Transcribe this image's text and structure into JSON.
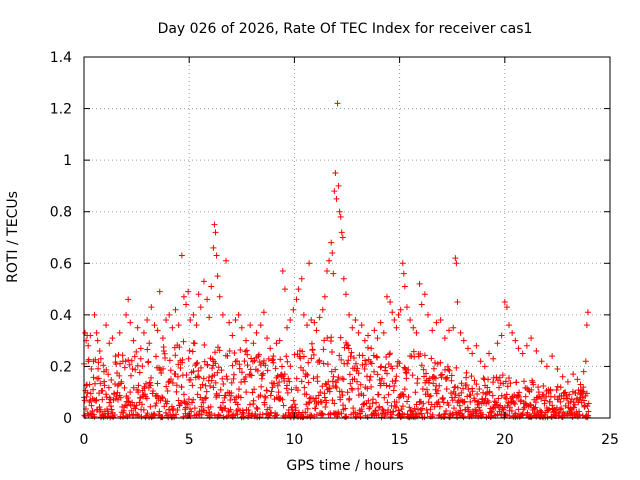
{
  "chart_data": {
    "type": "scatter",
    "title": "Day 026 of 2026, Rate Of TEC Index for receiver cas1",
    "xlabel": "GPS time / hours",
    "ylabel": "ROTI / TECUs",
    "xlim": [
      0,
      25
    ],
    "ylim": [
      0,
      1.4
    ],
    "x_ticks": [
      "0",
      "5",
      "10",
      "15",
      "20",
      "25"
    ],
    "y_ticks": [
      "0",
      "0.2",
      "0.4",
      "0.6",
      "0.8",
      "1",
      "1.2",
      "1.4"
    ],
    "grid": true,
    "marker": "plus",
    "series": [
      {
        "color": "#ff0000",
        "points": [
          [
            0.0,
            0.21
          ],
          [
            0.05,
            0.33
          ],
          [
            0.1,
            0.3
          ],
          [
            0.15,
            0.32
          ],
          [
            0.2,
            0.28
          ],
          [
            0.3,
            0.32
          ],
          [
            0.35,
            0.19
          ],
          [
            0.45,
            0.22
          ],
          [
            0.5,
            0.4
          ],
          [
            0.6,
            0.33
          ],
          [
            0.65,
            0.3
          ],
          [
            0.75,
            0.26
          ],
          [
            0.8,
            0.23
          ],
          [
            0.95,
            0.18
          ],
          [
            1.05,
            0.36
          ],
          [
            1.2,
            0.29
          ],
          [
            1.35,
            0.31
          ],
          [
            1.5,
            0.24
          ],
          [
            1.7,
            0.33
          ],
          [
            1.85,
            0.22
          ],
          [
            2.0,
            0.4
          ],
          [
            2.1,
            0.46
          ],
          [
            2.2,
            0.37
          ],
          [
            2.35,
            0.3
          ],
          [
            2.55,
            0.35
          ],
          [
            2.7,
            0.27
          ],
          [
            2.85,
            0.33
          ],
          [
            3.0,
            0.38
          ],
          [
            3.1,
            0.29
          ],
          [
            3.2,
            0.43
          ],
          [
            3.35,
            0.36
          ],
          [
            3.5,
            0.34
          ],
          [
            3.6,
            0.49
          ],
          [
            3.75,
            0.31
          ],
          [
            3.9,
            0.38
          ],
          [
            4.05,
            0.4
          ],
          [
            4.2,
            0.35
          ],
          [
            4.35,
            0.42
          ],
          [
            4.5,
            0.36
          ],
          [
            4.65,
            0.63
          ],
          [
            4.75,
            0.47
          ],
          [
            4.85,
            0.44
          ],
          [
            4.95,
            0.49
          ],
          [
            5.05,
            0.38
          ],
          [
            5.2,
            0.4
          ],
          [
            5.35,
            0.36
          ],
          [
            5.45,
            0.48
          ],
          [
            5.55,
            0.43
          ],
          [
            5.7,
            0.53
          ],
          [
            5.85,
            0.46
          ],
          [
            5.95,
            0.39
          ],
          [
            6.05,
            0.51
          ],
          [
            6.15,
            0.66
          ],
          [
            6.2,
            0.75
          ],
          [
            6.25,
            0.72
          ],
          [
            6.3,
            0.63
          ],
          [
            6.35,
            0.55
          ],
          [
            6.45,
            0.47
          ],
          [
            6.6,
            0.4
          ],
          [
            6.75,
            0.61
          ],
          [
            6.9,
            0.37
          ],
          [
            7.05,
            0.32
          ],
          [
            7.2,
            0.38
          ],
          [
            7.35,
            0.4
          ],
          [
            7.5,
            0.35
          ],
          [
            7.7,
            0.3
          ],
          [
            7.9,
            0.36
          ],
          [
            8.05,
            0.29
          ],
          [
            8.2,
            0.33
          ],
          [
            8.4,
            0.36
          ],
          [
            8.55,
            0.41
          ],
          [
            8.7,
            0.31
          ],
          [
            8.85,
            0.27
          ],
          [
            9.0,
            0.24
          ],
          [
            9.15,
            0.29
          ],
          [
            9.3,
            0.3
          ],
          [
            9.45,
            0.57
          ],
          [
            9.55,
            0.5
          ],
          [
            9.65,
            0.35
          ],
          [
            9.8,
            0.38
          ],
          [
            9.95,
            0.42
          ],
          [
            10.1,
            0.46
          ],
          [
            10.2,
            0.5
          ],
          [
            10.35,
            0.54
          ],
          [
            10.45,
            0.4
          ],
          [
            10.6,
            0.36
          ],
          [
            10.7,
            0.6
          ],
          [
            10.8,
            0.38
          ],
          [
            10.95,
            0.37
          ],
          [
            11.05,
            0.34
          ],
          [
            11.2,
            0.39
          ],
          [
            11.35,
            0.42
          ],
          [
            11.45,
            0.47
          ],
          [
            11.55,
            0.57
          ],
          [
            11.65,
            0.61
          ],
          [
            11.75,
            0.68
          ],
          [
            11.8,
            0.64
          ],
          [
            11.85,
            0.56
          ],
          [
            11.9,
            0.88
          ],
          [
            11.95,
            0.95
          ],
          [
            12.0,
            0.85
          ],
          [
            12.05,
            1.22
          ],
          [
            12.1,
            0.9
          ],
          [
            12.15,
            0.8
          ],
          [
            12.2,
            0.78
          ],
          [
            12.25,
            0.72
          ],
          [
            12.3,
            0.7
          ],
          [
            12.35,
            0.54
          ],
          [
            12.45,
            0.48
          ],
          [
            12.6,
            0.4
          ],
          [
            12.75,
            0.35
          ],
          [
            12.9,
            0.38
          ],
          [
            13.05,
            0.33
          ],
          [
            13.2,
            0.36
          ],
          [
            13.35,
            0.3
          ],
          [
            13.5,
            0.32
          ],
          [
            13.65,
            0.27
          ],
          [
            13.8,
            0.34
          ],
          [
            13.95,
            0.31
          ],
          [
            14.1,
            0.37
          ],
          [
            14.25,
            0.33
          ],
          [
            14.4,
            0.47
          ],
          [
            14.55,
            0.45
          ],
          [
            14.65,
            0.41
          ],
          [
            14.75,
            0.38
          ],
          [
            14.85,
            0.35
          ],
          [
            14.95,
            0.4
          ],
          [
            15.05,
            0.42
          ],
          [
            15.15,
            0.6
          ],
          [
            15.2,
            0.56
          ],
          [
            15.25,
            0.51
          ],
          [
            15.35,
            0.43
          ],
          [
            15.5,
            0.38
          ],
          [
            15.65,
            0.35
          ],
          [
            15.8,
            0.33
          ],
          [
            15.95,
            0.52
          ],
          [
            16.05,
            0.44
          ],
          [
            16.2,
            0.48
          ],
          [
            16.35,
            0.4
          ],
          [
            16.55,
            0.34
          ],
          [
            16.75,
            0.37
          ],
          [
            16.95,
            0.38
          ],
          [
            17.15,
            0.31
          ],
          [
            17.35,
            0.34
          ],
          [
            17.55,
            0.35
          ],
          [
            17.65,
            0.62
          ],
          [
            17.7,
            0.6
          ],
          [
            17.75,
            0.45
          ],
          [
            17.9,
            0.33
          ],
          [
            18.05,
            0.3
          ],
          [
            18.25,
            0.27
          ],
          [
            18.45,
            0.25
          ],
          [
            18.65,
            0.28
          ],
          [
            18.85,
            0.22
          ],
          [
            19.05,
            0.2
          ],
          [
            19.25,
            0.25
          ],
          [
            19.45,
            0.23
          ],
          [
            19.65,
            0.29
          ],
          [
            19.85,
            0.32
          ],
          [
            20.0,
            0.45
          ],
          [
            20.1,
            0.43
          ],
          [
            20.2,
            0.36
          ],
          [
            20.35,
            0.33
          ],
          [
            20.5,
            0.3
          ],
          [
            20.65,
            0.27
          ],
          [
            20.85,
            0.25
          ],
          [
            21.05,
            0.28
          ],
          [
            21.25,
            0.31
          ],
          [
            21.5,
            0.26
          ],
          [
            21.75,
            0.22
          ],
          [
            22.0,
            0.2
          ],
          [
            22.25,
            0.24
          ],
          [
            22.5,
            0.19
          ],
          [
            22.75,
            0.16
          ],
          [
            23.0,
            0.14
          ],
          [
            23.25,
            0.17
          ],
          [
            23.45,
            0.15
          ],
          [
            23.6,
            0.13
          ],
          [
            23.75,
            0.18
          ],
          [
            23.85,
            0.22
          ],
          [
            23.9,
            0.36
          ],
          [
            23.95,
            0.41
          ]
        ],
        "dense_band": {
          "x": [
            0,
            1,
            2,
            3,
            4,
            5,
            6,
            7,
            8,
            9,
            10,
            11,
            12,
            13,
            14,
            15,
            16,
            17,
            18,
            19,
            20,
            21,
            22,
            23,
            24
          ],
          "y_upper": [
            0.24,
            0.24,
            0.26,
            0.28,
            0.29,
            0.3,
            0.29,
            0.27,
            0.26,
            0.23,
            0.25,
            0.3,
            0.32,
            0.28,
            0.26,
            0.27,
            0.25,
            0.22,
            0.18,
            0.16,
            0.17,
            0.15,
            0.13,
            0.12,
            0.12
          ]
        }
      }
    ]
  }
}
